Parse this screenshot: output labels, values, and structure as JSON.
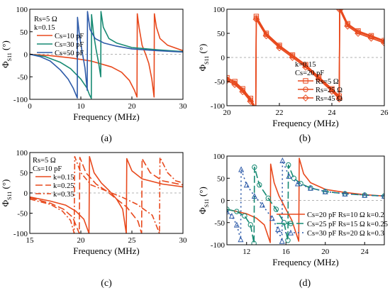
{
  "colors": {
    "red": "#e8491d",
    "teal": "#178a73",
    "blue": "#2d5aa8",
    "zero_line": "#9a9a9a"
  },
  "chart_data": [
    {
      "label": "(a)",
      "type": "line",
      "xlabel": "Frequency (MHz)",
      "ylabel_main": "Φ",
      "ylabel_sub": "S11",
      "ylabel_unit": "(°)",
      "xlim": [
        0,
        30
      ],
      "ylim": [
        -100,
        100
      ],
      "xticks": [
        0,
        10,
        20,
        30
      ],
      "yticks": [
        -100,
        -50,
        0,
        50,
        100
      ],
      "zero_line": true,
      "legend_title": [
        "Rs=5 Ω",
        "k=0.15"
      ],
      "series": [
        {
          "name": "Cs=10 pF",
          "color": "red",
          "dash": "",
          "marker": "",
          "x": [
            0,
            4,
            8,
            12,
            16,
            18,
            19.5,
            20.5,
            21.0,
            21.05,
            21.4,
            22.0,
            22.7,
            23.3,
            23.9,
            24.35,
            24.4,
            24.8,
            25.5,
            27,
            30
          ],
          "y": [
            0,
            -3,
            -8,
            -15,
            -28,
            -40,
            -58,
            -80,
            -95,
            90,
            60,
            20,
            0,
            -20,
            -55,
            -95,
            90,
            60,
            35,
            20,
            8
          ]
        },
        {
          "name": "Cs=30 pF",
          "color": "teal",
          "dash": "",
          "marker": "",
          "x": [
            0,
            3,
            6,
            8,
            10,
            11.2,
            11.7,
            12.05,
            12.1,
            12.5,
            13.0,
            13.5,
            13.9,
            13.95,
            14.4,
            15.5,
            17,
            20,
            25,
            30
          ],
          "y": [
            0,
            -5,
            -18,
            -32,
            -55,
            -75,
            -90,
            -98,
            88,
            45,
            10,
            -20,
            -50,
            95,
            60,
            35,
            25,
            15,
            10,
            6
          ]
        },
        {
          "name": "Cs=50 pF",
          "color": "blue",
          "dash": "",
          "marker": "",
          "x": [
            0,
            2,
            4,
            6,
            7.5,
            8.5,
            9.3,
            9.35,
            9.7,
            10.2,
            10.8,
            11.25,
            11.3,
            11.8,
            12.8,
            14.5,
            17,
            20,
            25,
            30
          ],
          "y": [
            0,
            -5,
            -15,
            -35,
            -55,
            -75,
            -97,
            82,
            45,
            10,
            -30,
            -80,
            95,
            55,
            35,
            25,
            18,
            12,
            8,
            5
          ]
        }
      ]
    },
    {
      "label": "(b)",
      "type": "line",
      "xlabel": "Frequency (MHz)",
      "ylabel_main": "Φ",
      "ylabel_sub": "S11",
      "ylabel_unit": "(°)",
      "xlim": [
        20,
        26
      ],
      "ylim": [
        -100,
        100
      ],
      "xticks": [
        20,
        22,
        24,
        26
      ],
      "yticks": [
        -100,
        -50,
        0,
        50,
        100
      ],
      "zero_line": true,
      "legend_title": [
        "k=0.15",
        "Cs=20 pF"
      ],
      "series": [
        {
          "name": "Rs=5 Ω",
          "color": "red",
          "dash": "",
          "marker": "square",
          "x": [
            20,
            20.3,
            20.6,
            20.9,
            21.1,
            21.12,
            21.5,
            22.0,
            22.5,
            23.0,
            23.5,
            24.0,
            24.28,
            24.3,
            24.6,
            25.0,
            25.5,
            26
          ],
          "y": [
            -42,
            -50,
            -65,
            -85,
            -105,
            85,
            50,
            25,
            5,
            -15,
            -40,
            -65,
            -80,
            105,
            70,
            55,
            45,
            35
          ]
        },
        {
          "name": "Rs=25 Ω",
          "color": "red",
          "dash": "",
          "marker": "circle",
          "x": [
            20,
            20.3,
            20.6,
            20.9,
            21.1,
            21.12,
            21.5,
            22.0,
            22.5,
            23.0,
            23.5,
            24.0,
            24.28,
            24.3,
            24.6,
            25.0,
            25.5,
            26
          ],
          "y": [
            -45,
            -53,
            -68,
            -88,
            -108,
            82,
            48,
            23,
            3,
            -17,
            -42,
            -67,
            -83,
            102,
            68,
            53,
            43,
            33
          ]
        },
        {
          "name": "Rs=45 Ω",
          "color": "red",
          "dash": "",
          "marker": "diamond",
          "x": [
            20,
            20.3,
            20.6,
            20.9,
            21.1,
            21.12,
            21.5,
            22.0,
            22.5,
            23.0,
            23.5,
            24.0,
            24.28,
            24.3,
            24.6,
            25.0,
            25.5,
            26
          ],
          "y": [
            -48,
            -56,
            -71,
            -91,
            -111,
            79,
            45,
            20,
            0,
            -20,
            -45,
            -70,
            -86,
            99,
            65,
            50,
            40,
            30
          ]
        }
      ]
    },
    {
      "label": "(c)",
      "type": "line",
      "xlabel": "Frequency (MHz)",
      "ylabel_main": "Φ",
      "ylabel_sub": "S11",
      "ylabel_unit": "(°)",
      "xlim": [
        15,
        30
      ],
      "ylim": [
        -100,
        100
      ],
      "xticks": [
        15,
        20,
        25,
        30
      ],
      "yticks": [
        -100,
        -50,
        0,
        50,
        100
      ],
      "zero_line": true,
      "legend_title": [
        "Rs=5 Ω",
        "Cs=10 pF"
      ],
      "series": [
        {
          "name": "k=0.15",
          "color": "red",
          "dash": "",
          "marker": "",
          "x": [
            15,
            17,
            18.5,
            19.5,
            20.3,
            20.8,
            20.85,
            21.3,
            22,
            22.8,
            23.5,
            24.1,
            24.45,
            24.5,
            25,
            26,
            28,
            30
          ],
          "y": [
            -10,
            -20,
            -30,
            -45,
            -65,
            -100,
            90,
            50,
            25,
            5,
            -15,
            -40,
            -100,
            85,
            55,
            35,
            22,
            15
          ]
        },
        {
          "name": "k=0.25",
          "color": "red",
          "dash": "10,4",
          "marker": "",
          "x": [
            15,
            17,
            18.3,
            19.2,
            19.85,
            19.9,
            20.5,
            21.5,
            22.5,
            23.5,
            24.5,
            25.6,
            25.95,
            26.0,
            26.8,
            28,
            30
          ],
          "y": [
            -12,
            -25,
            -40,
            -60,
            -100,
            88,
            50,
            22,
            5,
            -15,
            -35,
            -70,
            -100,
            85,
            50,
            30,
            20
          ]
        },
        {
          "name": "k=0.35",
          "color": "red",
          "dash": "8,3,2,3",
          "marker": "",
          "x": [
            15,
            17,
            18.2,
            19.0,
            19.35,
            19.4,
            20,
            21,
            22.5,
            24,
            25.5,
            27,
            27.7,
            27.75,
            28.5,
            29.3,
            30
          ],
          "y": [
            -15,
            -28,
            -45,
            -68,
            -100,
            90,
            50,
            20,
            5,
            -10,
            -28,
            -55,
            -100,
            88,
            50,
            30,
            25
          ]
        }
      ]
    },
    {
      "label": "(d)",
      "type": "line",
      "xlabel": "Frequency (MHz)",
      "ylabel_main": "Φ",
      "ylabel_sub": "S11",
      "ylabel_unit": "(°)",
      "xlim": [
        10,
        26
      ],
      "ylim": [
        -100,
        100
      ],
      "xticks": [
        12,
        16,
        20,
        24
      ],
      "yticks": [
        -100,
        -50,
        0,
        50,
        100
      ],
      "zero_line": true,
      "legend_title": [],
      "series": [
        {
          "name": "Cs=20 pF Rs=10 Ω k=0.2",
          "color": "red",
          "dash": "",
          "marker": "",
          "x": [
            10,
            11,
            12,
            13,
            13.8,
            14.4,
            14.45,
            14.8,
            15.3,
            16.0,
            16.6,
            17.3,
            17.35,
            17.8,
            18.5,
            20,
            22,
            24,
            26
          ],
          "y": [
            -20,
            -25,
            -30,
            -40,
            -55,
            -95,
            82,
            40,
            10,
            -20,
            -45,
            -92,
            95,
            60,
            40,
            25,
            18,
            13,
            10
          ]
        },
        {
          "name": "Cs=25 pF Rs=15 Ω k=0.25",
          "color": "teal",
          "dash": "10,4",
          "marker": "circle",
          "x": [
            10,
            11,
            11.8,
            12.4,
            12.75,
            12.8,
            13.3,
            14.2,
            15.0,
            15.8,
            16.2,
            16.25,
            16.8,
            17.5,
            18.5,
            20,
            22,
            24,
            26
          ],
          "y": [
            -20,
            -25,
            -35,
            -55,
            -97,
            75,
            35,
            5,
            -20,
            -50,
            -90,
            80,
            50,
            38,
            28,
            20,
            15,
            12,
            10
          ]
        },
        {
          "name": "Cs=30 pF Rs=20 Ω k=0.3",
          "color": "blue",
          "dash": "2,4",
          "marker": "triangle",
          "x": [
            10,
            10.5,
            11.0,
            11.4,
            11.45,
            12.0,
            12.8,
            13.6,
            14.6,
            15.2,
            15.6,
            15.65,
            16.3,
            17.2,
            18.5,
            20,
            22,
            24,
            26
          ],
          "y": [
            -25,
            -35,
            -55,
            -88,
            70,
            35,
            10,
            -10,
            -40,
            -65,
            -92,
            90,
            55,
            38,
            28,
            20,
            15,
            12,
            10
          ]
        }
      ]
    }
  ]
}
